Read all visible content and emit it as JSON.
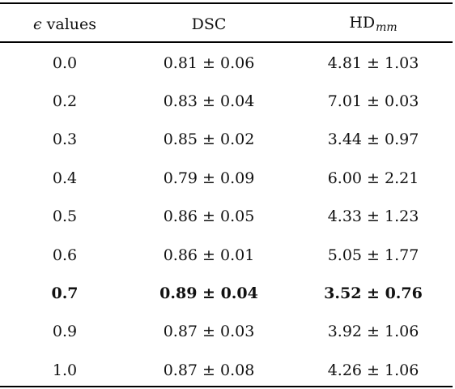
{
  "header": {
    "col0_symbol": "ϵ",
    "col0_label": " values",
    "col1_label": "DSC",
    "col2_base": "HD",
    "col2_sub": "mm"
  },
  "rows": [
    {
      "eps": "0.0",
      "dsc": "0.81 ± 0.06",
      "hd": "4.81 ± 1.03",
      "bold": false
    },
    {
      "eps": "0.2",
      "dsc": "0.83 ± 0.04",
      "hd": "7.01 ± 0.03",
      "bold": false
    },
    {
      "eps": "0.3",
      "dsc": "0.85 ± 0.02",
      "hd": "3.44 ± 0.97",
      "bold": false
    },
    {
      "eps": "0.4",
      "dsc": "0.79 ± 0.09",
      "hd": "6.00 ± 2.21",
      "bold": false
    },
    {
      "eps": "0.5",
      "dsc": "0.86 ± 0.05",
      "hd": "4.33 ± 1.23",
      "bold": false
    },
    {
      "eps": "0.6",
      "dsc": "0.86 ± 0.01",
      "hd": "5.05 ± 1.77",
      "bold": false
    },
    {
      "eps": "0.7",
      "dsc": "0.89 ± 0.04",
      "hd": "3.52 ± 0.76",
      "bold": true
    },
    {
      "eps": "0.9",
      "dsc": "0.87 ± 0.03",
      "hd": "3.92 ± 1.06",
      "bold": false
    },
    {
      "eps": "1.0",
      "dsc": "0.87 ± 0.08",
      "hd": "4.26 ± 1.06",
      "bold": false
    }
  ]
}
